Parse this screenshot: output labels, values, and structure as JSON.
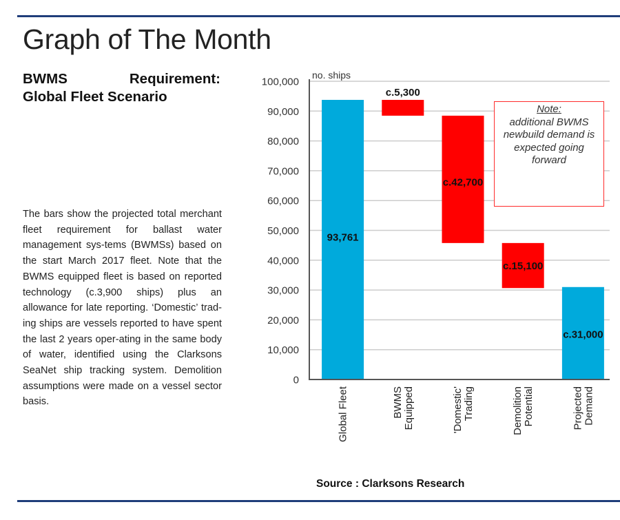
{
  "header": {
    "title": "Graph of The Month",
    "subtitle_line1_a": "BWMS",
    "subtitle_line1_b": "Requirement:",
    "subtitle_line2": "Global Fleet Scenario"
  },
  "description": "The bars show the projected total merchant fleet requirement for ballast water management sys-tems (BWMSs) based on the start March 2017 fleet. Note that the BWMS equipped fleet is based on reported technology (c.3,900 ships) plus an allowance for late reporting. ‘Domestic’ trad-ing ships are vessels reported to have spent the last 2 years oper-ating in the same body of water, identified using the Clarksons SeaNet ship tracking system. Demolition assumptions were made on a vessel sector basis.",
  "source": "Source : Clarksons Research",
  "note": {
    "heading": "Note:",
    "body": "additional BWMS newbuild demand is expected going forward"
  },
  "colors": {
    "total": "#00aadc",
    "decrease": "#ff0000",
    "rule": "#1f3d7a",
    "grid": "#cccccc",
    "axis": "#555555"
  },
  "chart_data": {
    "type": "bar",
    "subtype": "waterfall",
    "title": "BWMS Requirement: Global Fleet Scenario",
    "ylabel": "no. ships",
    "xlabel": "",
    "ylim": [
      0,
      100000
    ],
    "yticks": [
      0,
      10000,
      20000,
      30000,
      40000,
      50000,
      60000,
      70000,
      80000,
      90000,
      100000
    ],
    "ytick_labels": [
      "0",
      "10,000",
      "20,000",
      "30,000",
      "40,000",
      "50,000",
      "60,000",
      "70,000",
      "80,000",
      "90,000",
      "100,000"
    ],
    "grid": true,
    "legend": "none",
    "categories": [
      [
        "Global Fleet"
      ],
      [
        "BWMS",
        "Equipped"
      ],
      [
        "'Domestic'",
        "Trading"
      ],
      [
        "Demolition",
        "Potential"
      ],
      [
        "Projected",
        "Demand"
      ]
    ],
    "bars": [
      {
        "name": "Global Fleet",
        "kind": "total",
        "start": 0,
        "end": 93761,
        "label": "93,761"
      },
      {
        "name": "BWMS Equipped",
        "kind": "decrease",
        "start": 88461,
        "end": 93761,
        "label": "c.5,300"
      },
      {
        "name": "'Domestic' Trading",
        "kind": "decrease",
        "start": 45761,
        "end": 88461,
        "label": "c.42,700"
      },
      {
        "name": "Demolition Potential",
        "kind": "decrease",
        "start": 30661,
        "end": 45761,
        "label": "c.15,100"
      },
      {
        "name": "Projected Demand",
        "kind": "total",
        "start": 0,
        "end": 31000,
        "label": "c.31,000"
      }
    ]
  }
}
